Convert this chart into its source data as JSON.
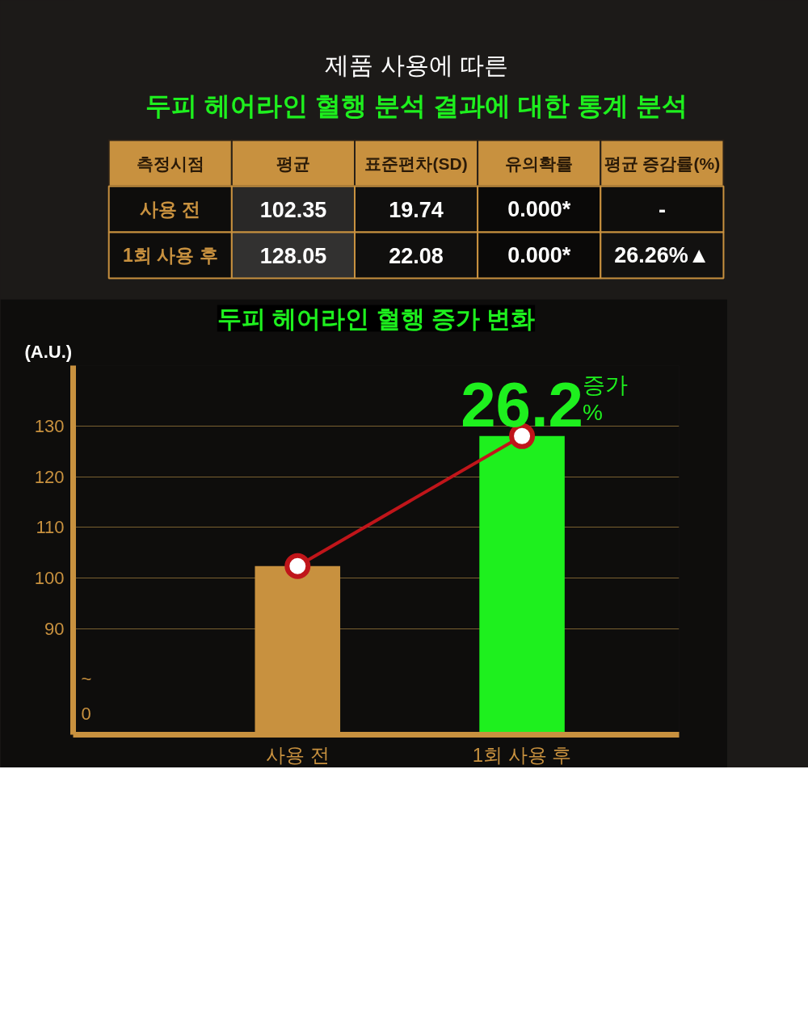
{
  "chart_data": [
    {
      "type": "heatmap",
      "title": "제품 사용에 따른",
      "subtitle": "두피 헤어라인 혈행 분석 결과에 대한 통계 분석",
      "ylabel": "측정시점",
      "categories": [
        "평균",
        "표준편차(SD)",
        "유의확률",
        "평균 증감률(%)"
      ],
      "y_categories": [
        "사용 전",
        "1회 사용 후"
      ],
      "cells": [
        [
          102.35,
          19.74,
          0.0,
          null
        ],
        [
          128.05,
          22.08,
          0.0,
          26.26
        ]
      ],
      "cell_labels": [
        [
          "102.35",
          "19.74",
          "0.000*",
          "-"
        ],
        [
          "128.05",
          "22.08",
          "0.000*",
          "26.26%▲"
        ]
      ]
    },
    {
      "type": "bar",
      "title": "두피 헤어라인 혈행 증가 변화",
      "ylabel": "(A.U.)",
      "categories": [
        "사용 전",
        "1회 사용 후"
      ],
      "series": [
        {
          "type": "bar",
          "colors": [
            "#c8913f",
            "#1ef01e"
          ],
          "values": [
            102.35,
            128.05
          ]
        },
        {
          "type": "line",
          "color": "#c0151a",
          "values": [
            102.35,
            128.05
          ],
          "marker": "circle"
        }
      ],
      "ylim": [
        69,
        142
      ],
      "yticks": [
        90,
        100,
        110,
        120,
        130
      ],
      "grid": "y",
      "annotations": [
        "0",
        "~",
        "26.2",
        "증가",
        "%"
      ]
    }
  ]
}
